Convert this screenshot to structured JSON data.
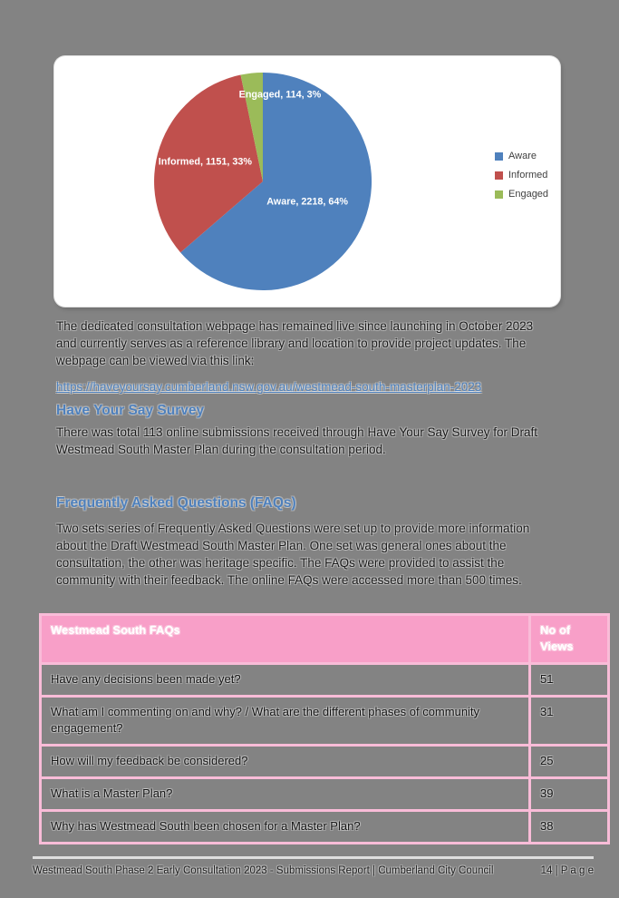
{
  "page": {
    "background": "#838383"
  },
  "chart_data": {
    "type": "pie",
    "title": "",
    "categories": [
      "Aware",
      "Informed",
      "Engaged"
    ],
    "values": [
      2218,
      1151,
      114
    ],
    "percent_labels": [
      "64%",
      "33%",
      "3%"
    ],
    "slice_labels": [
      "Aware, 2218, 64%",
      "Informed, 1151, 33%",
      "Engaged, 114, 3%"
    ],
    "colors": [
      "#4F81BD",
      "#C0504D",
      "#9BBB59"
    ],
    "legend": [
      "Aware",
      "Informed",
      "Engaged"
    ],
    "legend_position": "right",
    "start_angle_deg": 0,
    "direction": "clockwise"
  },
  "content": {
    "intro": "The dedicated consultation webpage has remained live since launching in October 2023 and currently serves as a reference library and location to provide project updates. The webpage can be viewed via this link:",
    "link": "https://haveyoursay.cumberland.nsw.gov.au/westmead-south-masterplan-2023",
    "survey_heading": "Have Your Say Survey",
    "survey_text": "There was total 113 online submissions received through Have Your Say Survey for Draft Westmead South Master Plan during the consultation period.",
    "faq_heading": "Frequently Asked Questions (FAQs)",
    "faq_text": "Two sets series of Frequently Asked Questions were set up to provide more information about the Draft Westmead South Master Plan. One set was general ones about the consultation, the other was heritage specific. The FAQs were provided to assist the community with their feedback. The online FAQs were accessed more than 500 times."
  },
  "table": {
    "header": [
      "Westmead South FAQs",
      "No of Views"
    ],
    "rows": [
      {
        "question": "Have any decisions been made yet?",
        "views": "51"
      },
      {
        "question": "What am I commenting on and why? / What are the different phases of community engagement?",
        "views": "31"
      },
      {
        "question": "How will my feedback be considered?",
        "views": "25"
      },
      {
        "question": "What is a Master Plan?",
        "views": "39"
      },
      {
        "question": "Why has Westmead South been chosen for a Master Plan?",
        "views": "38"
      }
    ]
  },
  "footer": {
    "text": "Westmead South Phase 2 Early Consultation 2023 - Submissions Report | Cumberland City Council",
    "page_label": "14 | P a g e"
  }
}
